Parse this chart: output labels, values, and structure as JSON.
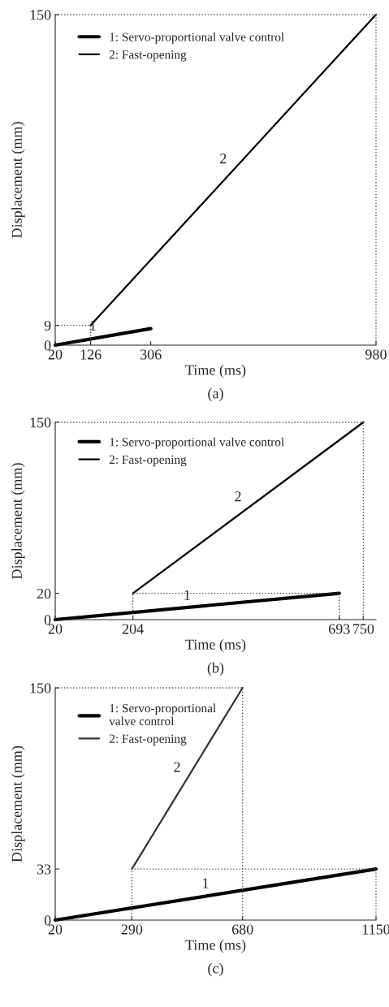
{
  "chart_data": [
    {
      "type": "line",
      "xlabel": "Time (ms)",
      "ylabel": "Displacement (mm)",
      "xlim": [
        20,
        980
      ],
      "ylim": [
        0,
        150
      ],
      "xticks": [
        20,
        126,
        306,
        980
      ],
      "yticks": [
        0,
        9,
        150
      ],
      "legend": "top left",
      "grid": false,
      "series": [
        {
          "name": "1: Servo-proportional valve control",
          "color": "#000000",
          "x": [
            20,
            306
          ],
          "values": [
            0,
            7.5
          ]
        },
        {
          "name": "2: Fast-opening",
          "color": "#000000",
          "x": [
            126,
            980
          ],
          "values": [
            9,
            150
          ]
        },
        {
          "color": "#555555",
          "line_style": "dotted",
          "x": [
            20,
            980
          ],
          "values": [
            150,
            150
          ]
        },
        {
          "color": "#555555",
          "line_style": "dotted",
          "x": [
            980,
            980
          ],
          "values": [
            150,
            0
          ]
        },
        {
          "color": "#444444",
          "line_style": "dotted",
          "x": [
            20,
            126,
            126
          ],
          "values": [
            9,
            9,
            0
          ]
        }
      ],
      "annotations": [
        {
          "text": "2",
          "x": 553,
          "y": 79.5
        },
        {
          "text": "1",
          "x": 163,
          "y": 3.75
        },
        "(a)"
      ]
    },
    {
      "type": "line",
      "xlabel": "Time (ms)",
      "ylabel": "Displacement (mm)",
      "xlim": [
        20,
        780
      ],
      "ylim": [
        0,
        150
      ],
      "xticks": [
        20,
        204,
        693,
        750
      ],
      "yticks": [
        0,
        20,
        150
      ],
      "legend": "top left",
      "grid": false,
      "series": [
        {
          "name": "1: Servo-proportional valve control",
          "color": "#000000",
          "x": [
            20,
            693
          ],
          "values": [
            0,
            20
          ]
        },
        {
          "name": "2: Fast-opening",
          "color": "#000000",
          "x": [
            204,
            750
          ],
          "values": [
            20,
            150
          ]
        },
        {
          "color": "#555555",
          "line_style": "dotted",
          "x": [
            20,
            750
          ],
          "values": [
            150,
            150
          ]
        },
        {
          "color": "#555555",
          "line_style": "dotted",
          "x": [
            750,
            750
          ],
          "values": [
            150,
            0
          ]
        },
        {
          "color": "#444444",
          "line_style": "dotted",
          "x": [
            204,
            204,
            693,
            693
          ],
          "values": [
            0,
            20,
            20,
            0
          ]
        }
      ],
      "annotations": [
        {
          "text": "2",
          "x": 477,
          "y": 85
        },
        {
          "text": "1",
          "x": 356.5,
          "y": 10
        },
        "(b)"
      ]
    },
    {
      "type": "line",
      "xlabel": "Time (ms)",
      "ylabel": "Displacement (mm)",
      "xlim": [
        20,
        1150
      ],
      "ylim": [
        0,
        150
      ],
      "xticks": [
        20,
        290,
        680,
        1150
      ],
      "yticks": [
        0,
        33,
        150
      ],
      "legend": "top left",
      "grid": false,
      "series": [
        {
          "name": "1: Servo-proportional\nvalve control",
          "color": "#000000",
          "x": [
            20,
            1150
          ],
          "values": [
            0,
            33
          ]
        },
        {
          "name": "2: Fast-opening",
          "color": "#333333",
          "x": [
            290,
            680
          ],
          "values": [
            33,
            150
          ]
        },
        {
          "color": "#555555",
          "line_style": "dotted",
          "x": [
            20,
            680,
            680
          ],
          "values": [
            150,
            150,
            0
          ]
        },
        {
          "color": "#555555",
          "line_style": "dotted",
          "x": [
            290,
            290,
            1150,
            1150
          ],
          "values": [
            0,
            33,
            33,
            0
          ]
        }
      ],
      "annotations": [
        {
          "text": "2",
          "x": 485,
          "y": 91.5
        },
        {
          "text": "1",
          "x": 585,
          "y": 16.5
        },
        "(c)"
      ]
    }
  ]
}
